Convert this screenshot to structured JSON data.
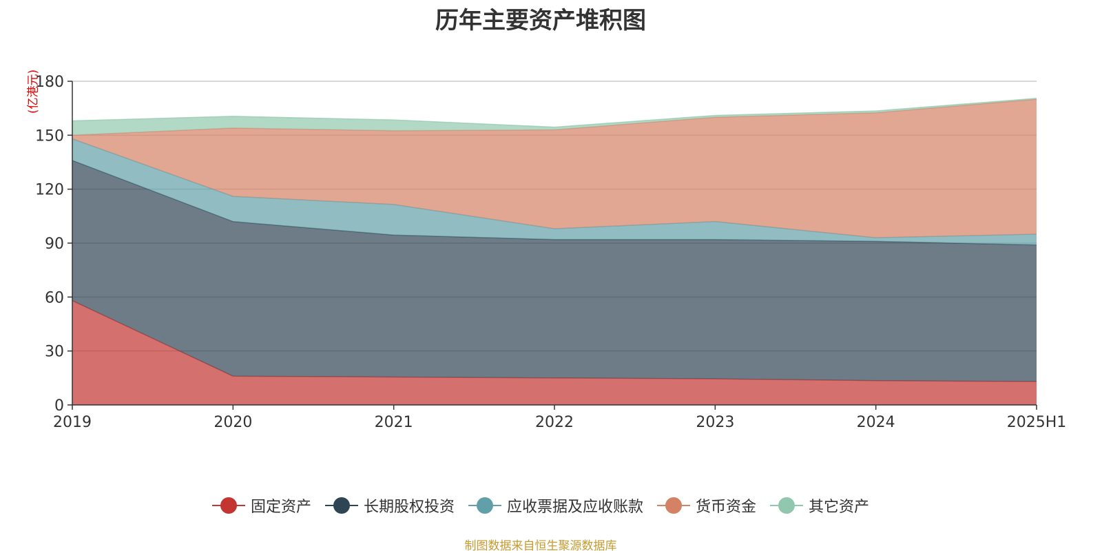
{
  "chart_data": {
    "type": "area",
    "stacked": true,
    "title": "历年主要资产堆积图",
    "unit_label": "(亿港元)",
    "categories": [
      "2019",
      "2020",
      "2021",
      "2022",
      "2023",
      "2024",
      "2025H1"
    ],
    "ylim": [
      0,
      180
    ],
    "yticks": [
      0,
      30,
      60,
      90,
      120,
      150,
      180
    ],
    "grid": true,
    "legend_position": "bottom",
    "series": [
      {
        "name": "固定资产",
        "color": "#c23531",
        "values": [
          58,
          16,
          15.5,
          15,
          14.5,
          13.5,
          13
        ]
      },
      {
        "name": "长期股权投资",
        "color": "#2f4554",
        "values": [
          78,
          86,
          79,
          77,
          77.5,
          77.5,
          76
        ]
      },
      {
        "name": "应收票据及应收账款",
        "color": "#61a0a8",
        "values": [
          12,
          14,
          17,
          6,
          10,
          2,
          6
        ]
      },
      {
        "name": "货币资金",
        "color": "#d48265",
        "values": [
          2,
          38,
          41,
          55,
          58,
          69.5,
          75
        ]
      },
      {
        "name": "其它资产",
        "color": "#91c7ae",
        "values": [
          8,
          6.5,
          6,
          1.5,
          1,
          1,
          0.5
        ]
      }
    ],
    "source_note": "制图数据来自恒生聚源数据库"
  }
}
